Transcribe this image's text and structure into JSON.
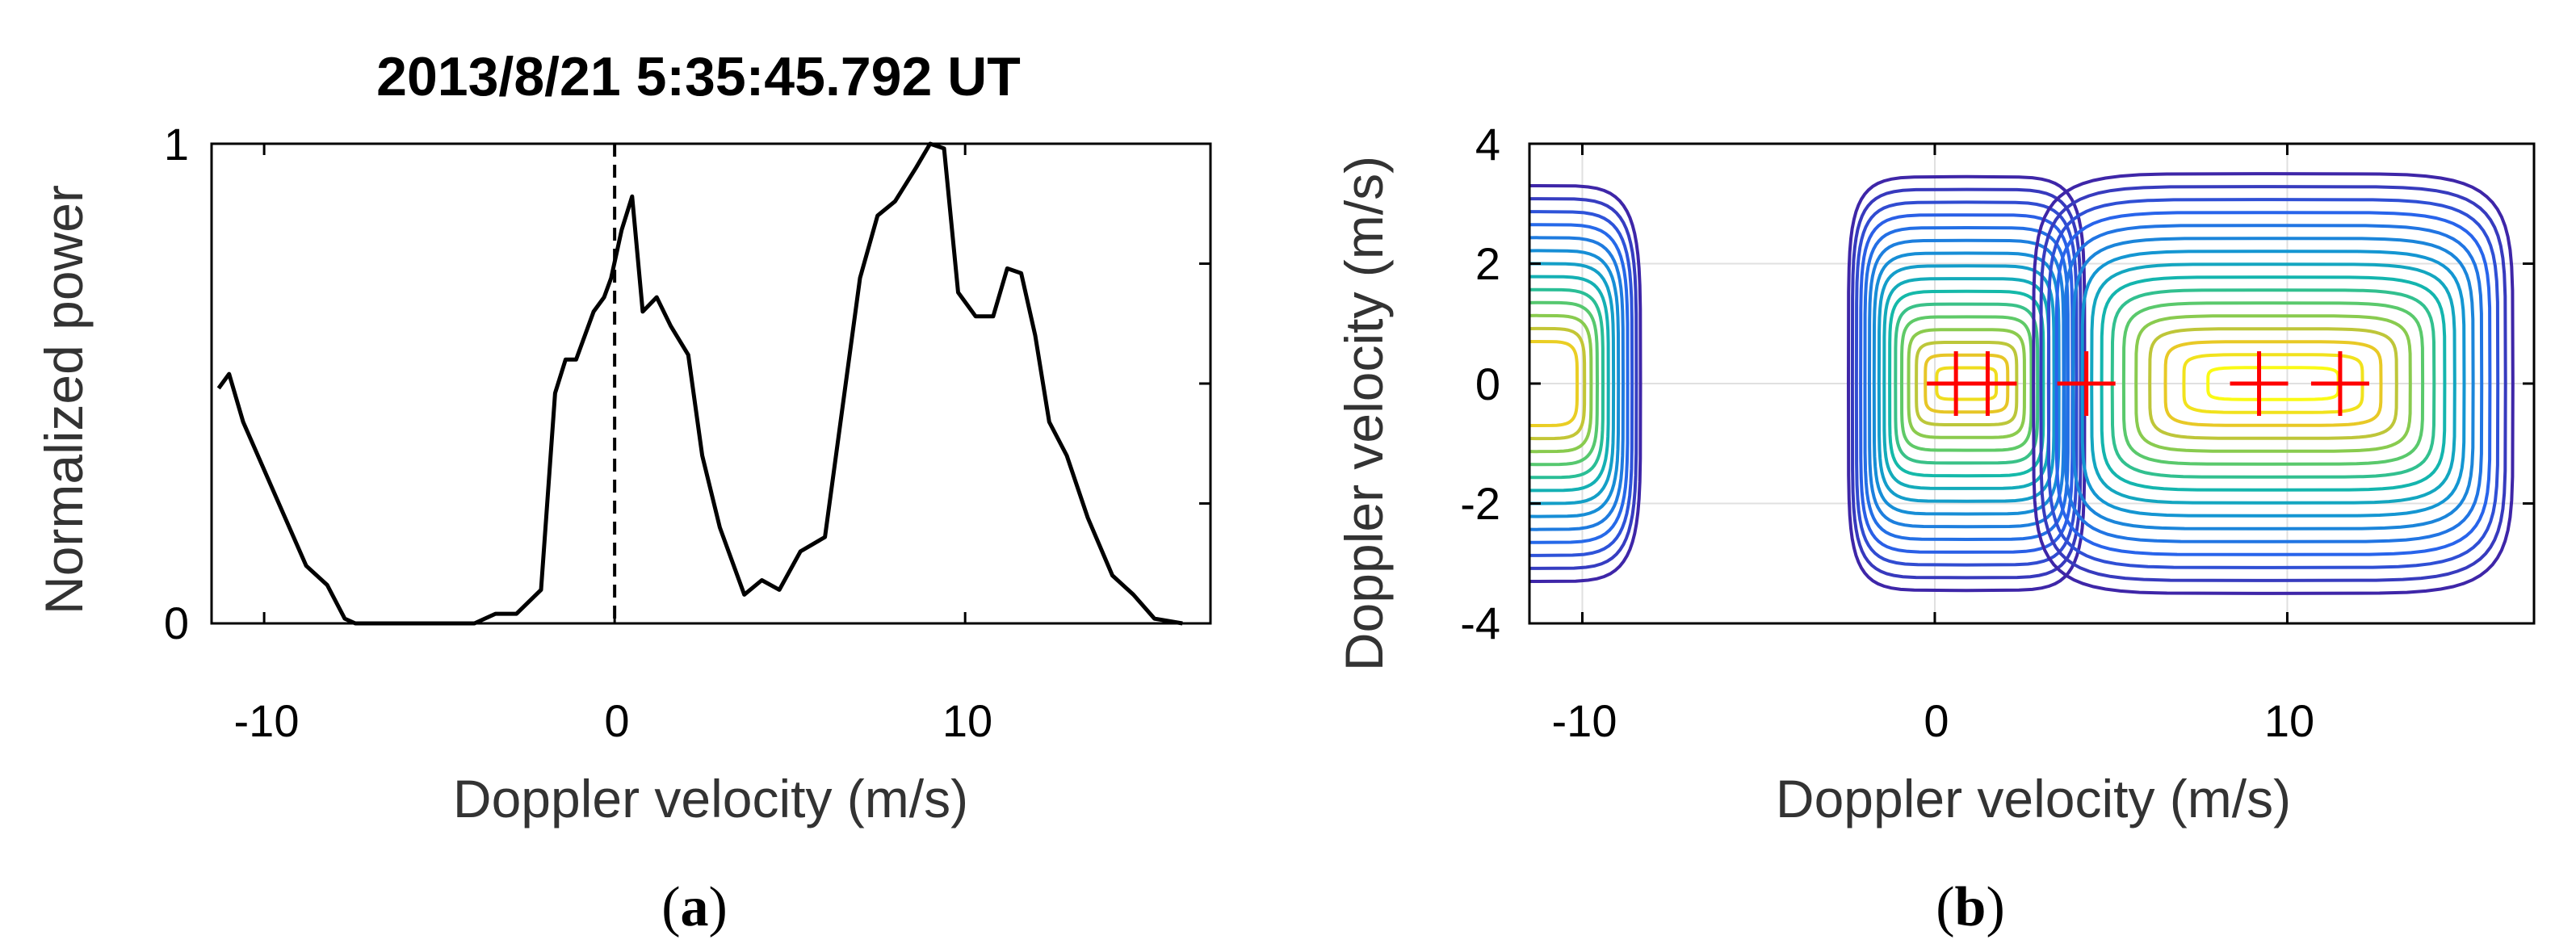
{
  "chart_data": [
    {
      "panel": "a",
      "type": "line",
      "title": "2013/8/21   5:35:45.792 UT",
      "xlabel": "Doppler velocity (m/s)",
      "ylabel": "Normalized power",
      "xlim": [
        -11.5,
        17
      ],
      "ylim": [
        0,
        1
      ],
      "xticks": [
        -10,
        0,
        10
      ],
      "xtick_labels": [
        "-10",
        "0",
        "10"
      ],
      "yticks": [
        0,
        1
      ],
      "ytick_labels": [
        "0",
        "1"
      ],
      "vline_x": 0,
      "vline_style": "dashed",
      "series": [
        {
          "name": "Normalized power",
          "x": [
            -11.3,
            -11.0,
            -10.6,
            -10.0,
            -9.4,
            -8.8,
            -8.2,
            -7.7,
            -7.4,
            -6.0,
            -4.0,
            -3.4,
            -2.8,
            -2.1,
            -1.7,
            -1.4,
            -1.1,
            -0.6,
            -0.3,
            -0.1,
            0.2,
            0.5,
            0.8,
            1.2,
            1.6,
            2.1,
            2.5,
            3.0,
            3.7,
            4.2,
            4.7,
            5.3,
            6.0,
            7.0,
            7.5,
            8.0,
            8.6,
            9.0,
            9.4,
            9.8,
            10.3,
            10.8,
            11.2,
            11.6,
            12.0,
            12.4,
            12.9,
            13.5,
            14.2,
            14.8,
            15.4,
            16.2
          ],
          "y": [
            0.49,
            0.52,
            0.42,
            0.32,
            0.22,
            0.12,
            0.08,
            0.01,
            0.0,
            0.0,
            0.0,
            0.02,
            0.02,
            0.07,
            0.48,
            0.55,
            0.55,
            0.65,
            0.68,
            0.72,
            0.82,
            0.89,
            0.65,
            0.68,
            0.62,
            0.56,
            0.35,
            0.2,
            0.06,
            0.09,
            0.07,
            0.15,
            0.18,
            0.72,
            0.85,
            0.88,
            0.95,
            1.0,
            0.99,
            0.69,
            0.64,
            0.64,
            0.74,
            0.73,
            0.6,
            0.42,
            0.35,
            0.22,
            0.1,
            0.06,
            0.01,
            0.0
          ]
        }
      ]
    },
    {
      "panel": "b",
      "type": "contour",
      "xlabel": "Doppler velocity (m/s)",
      "ylabel": "Doppler velocity (m/s)",
      "xlim": [
        -11.5,
        17
      ],
      "ylim": [
        -4,
        4
      ],
      "xticks": [
        -10,
        0,
        10
      ],
      "xtick_labels": [
        "-10",
        "0",
        "10"
      ],
      "yticks": [
        -4,
        -2,
        0,
        2,
        4
      ],
      "ytick_labels": [
        "-4",
        "-2",
        "0",
        "2",
        "4"
      ],
      "grid": true,
      "colormap": "parula",
      "contour_levels": 16,
      "blobs": [
        {
          "name": "left",
          "center_x": -11.3,
          "center_y": 0,
          "peak": 0.52
        },
        {
          "name": "middle",
          "center_x": 0.9,
          "center_y": 0,
          "peak": 0.89
        },
        {
          "name": "right",
          "center_x": 9.4,
          "center_y": 0,
          "peak": 1.0
        }
      ],
      "markers": [
        {
          "x": 0.6,
          "y": 0
        },
        {
          "x": 1.5,
          "y": 0
        },
        {
          "x": 4.3,
          "y": 0
        },
        {
          "x": 9.2,
          "y": 0
        },
        {
          "x": 11.5,
          "y": 0
        }
      ],
      "marker_color": "#ff0000"
    }
  ],
  "panel_labels": {
    "a": "(a)",
    "b": "(b)"
  },
  "colors": {
    "line": "#000000",
    "marker": "#ff0000",
    "grid": "#e0e0e0",
    "axes": "#000000"
  }
}
